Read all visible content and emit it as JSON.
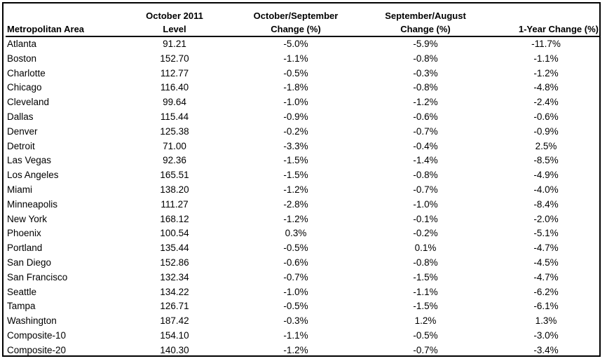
{
  "headers": [
    {
      "line1": "",
      "line2": "Metropolitan Area"
    },
    {
      "line1": "October 2011",
      "line2": "Level"
    },
    {
      "line1": "October/September",
      "line2": "Change (%)"
    },
    {
      "line1": "September/August",
      "line2": "Change (%)"
    },
    {
      "line1": "",
      "line2": "1-Year Change (%)"
    }
  ],
  "rows": [
    [
      "Atlanta",
      "91.21",
      "-5.0%",
      "-5.9%",
      "-11.7%"
    ],
    [
      "Boston",
      "152.70",
      "-1.1%",
      "-0.8%",
      "-1.1%"
    ],
    [
      "Charlotte",
      "112.77",
      "-0.5%",
      "-0.3%",
      "-1.2%"
    ],
    [
      "Chicago",
      "116.40",
      "-1.8%",
      "-0.8%",
      "-4.8%"
    ],
    [
      "Cleveland",
      "99.64",
      "-1.0%",
      "-1.2%",
      "-2.4%"
    ],
    [
      "Dallas",
      "115.44",
      "-0.9%",
      "-0.6%",
      "-0.6%"
    ],
    [
      "Denver",
      "125.38",
      "-0.2%",
      "-0.7%",
      "-0.9%"
    ],
    [
      "Detroit",
      "71.00",
      "-3.3%",
      "-0.4%",
      "2.5%"
    ],
    [
      "Las Vegas",
      "92.36",
      "-1.5%",
      "-1.4%",
      "-8.5%"
    ],
    [
      "Los Angeles",
      "165.51",
      "-1.5%",
      "-0.8%",
      "-4.9%"
    ],
    [
      "Miami",
      "138.20",
      "-1.2%",
      "-0.7%",
      "-4.0%"
    ],
    [
      "Minneapolis",
      "111.27",
      "-2.8%",
      "-1.0%",
      "-8.4%"
    ],
    [
      "New York",
      "168.12",
      "-1.2%",
      "-0.1%",
      "-2.0%"
    ],
    [
      "Phoenix",
      "100.54",
      "0.3%",
      "-0.2%",
      "-5.1%"
    ],
    [
      "Portland",
      "135.44",
      "-0.5%",
      "0.1%",
      "-4.7%"
    ],
    [
      "San Diego",
      "152.86",
      "-0.6%",
      "-0.8%",
      "-4.5%"
    ],
    [
      "San Francisco",
      "132.34",
      "-0.7%",
      "-1.5%",
      "-4.7%"
    ],
    [
      "Seattle",
      "134.22",
      "-1.0%",
      "-1.1%",
      "-6.2%"
    ],
    [
      "Tampa",
      "126.71",
      "-0.5%",
      "-1.5%",
      "-6.1%"
    ],
    [
      "Washington",
      "187.42",
      "-0.3%",
      "1.2%",
      "1.3%"
    ],
    [
      "Composite-10",
      "154.10",
      "-1.1%",
      "-0.5%",
      "-3.0%"
    ],
    [
      "Composite-20",
      "140.30",
      "-1.2%",
      "-0.7%",
      "-3.4%"
    ]
  ]
}
